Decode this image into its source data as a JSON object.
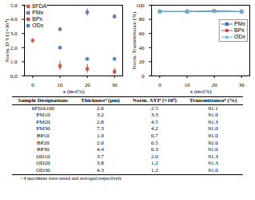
{
  "chart_data": [
    {
      "type": "scatter",
      "x_label": "x (mol%)",
      "y_label": "Norm. D YI (×10⁴)",
      "xlim": [
        -3,
        33
      ],
      "xticks": [
        0,
        10,
        20,
        30
      ],
      "ylim": [
        0,
        5
      ],
      "yticks": [
        0,
        1,
        2,
        3,
        4,
        5
      ],
      "legend": "upper left",
      "series": [
        {
          "name": "6FDA",
          "color": "#d9534f",
          "marker": "square",
          "x": [
            0
          ],
          "values": [
            2.5
          ],
          "errors": [
            0.15
          ]
        },
        {
          "name": "PMx",
          "color": "#7f6f9f",
          "marker": "square",
          "x": [
            10,
            20,
            30
          ],
          "values": [
            3.3,
            4.5,
            4.2
          ],
          "errors": [
            0.1,
            0.25,
            0.15
          ]
        },
        {
          "name": "BPx",
          "color": "#c0504d",
          "marker": "square",
          "x": [
            10,
            20,
            30
          ],
          "values": [
            0.7,
            0.5,
            0.3
          ],
          "errors": [
            0.3,
            0.3,
            0.25
          ]
        },
        {
          "name": "ODx",
          "color": "#4f81bd",
          "marker": "square",
          "x": [
            10,
            20,
            30
          ],
          "values": [
            2.0,
            1.2,
            1.2
          ],
          "errors": [
            0.1,
            0.1,
            0.08
          ]
        }
      ]
    },
    {
      "type": "line",
      "x_label": "x (mol%)",
      "y_label": "Norm. Transmittance (%)",
      "xlim": [
        -3,
        33
      ],
      "xticks": [
        0,
        10,
        20,
        30
      ],
      "ylim": [
        0,
        100
      ],
      "yticks": [
        0,
        20,
        40,
        60,
        80,
        100
      ],
      "legend": "upper right",
      "x": [
        0,
        10,
        20,
        30
      ],
      "series": [
        {
          "name": "PMx",
          "color": "#4472c4",
          "marker": "square",
          "values": [
            91.1,
            91.0,
            91.3,
            91.0
          ]
        },
        {
          "name": "BPx",
          "color": "#c0504d",
          "marker": "circle",
          "values": [
            91.1,
            91.0,
            92.0,
            91.0
          ]
        },
        {
          "name": "ODx",
          "color": "#5bb8d9",
          "marker": "triangle",
          "values": [
            91.1,
            91.3,
            91.3,
            91.0
          ]
        }
      ]
    }
  ],
  "table": {
    "columns": [
      "Sample Designations",
      "Thicknessᵃ (μm)",
      "Norm. ΔYIᵃ (×10⁴)",
      "Transmittanceᵃ (%)"
    ],
    "rows": [
      [
        "6FDA100",
        "2.6",
        "2.5",
        "91.1"
      ],
      [
        "PM10",
        "3.2",
        "3.3",
        "91.0"
      ],
      [
        "PM20",
        "2.8",
        "4.5",
        "91.3"
      ],
      [
        "PM30",
        "7.3",
        "4.2",
        "91.0"
      ],
      [
        "BP10",
        "1.9",
        "0.7",
        "91.0"
      ],
      [
        "BP20",
        "2.0",
        "0.5",
        "92.0"
      ],
      [
        "BP30",
        "4.4",
        "0.3",
        "91.0"
      ],
      [
        "OD10",
        "3.7",
        "2.0",
        "91.3"
      ],
      [
        "OD20",
        "3.8",
        "1.2",
        "91.3"
      ],
      [
        "OD30",
        "4.3",
        "1.2",
        "91.0"
      ]
    ],
    "footnote": "ᵃ 4 specimens were tested and averaged respectively"
  }
}
